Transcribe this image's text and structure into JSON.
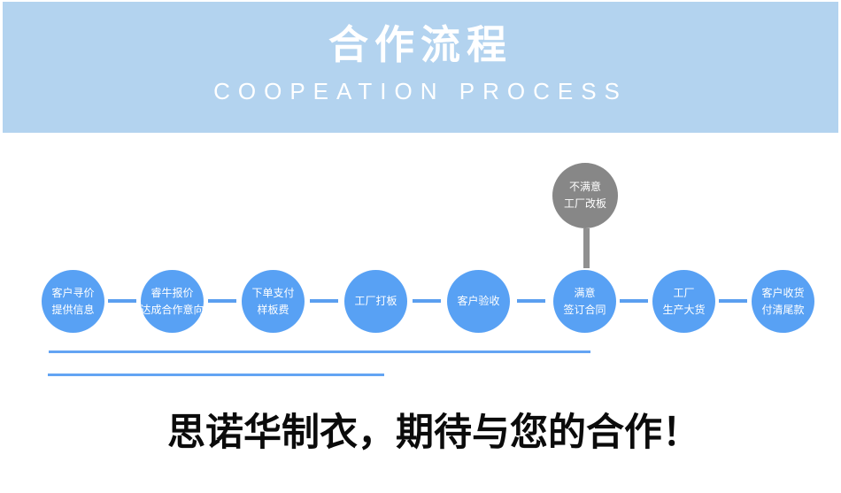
{
  "header": {
    "title": "合作流程",
    "subtitle": "COOPEATION PROCESS"
  },
  "theme": {
    "banner_bg": "#b3d3ef",
    "title_color": "#ffffff",
    "subtitle_color": "#ffffff",
    "node_blue": "#58a1f4",
    "node_gray": "#878787",
    "line_blue": "#5b9ff0",
    "divider_blue": "#63a4f3",
    "gray_line": "#909090",
    "slogan_color": "#0b0b0b"
  },
  "flow": {
    "alt_node": {
      "line1": "不满意",
      "line2": "工厂改板"
    },
    "steps": [
      {
        "line1": "客户寻价",
        "line2": "提供信息"
      },
      {
        "line1": "睿牛报价",
        "line2": "达成合作意向"
      },
      {
        "line1": "下单支付",
        "line2": "样板费"
      },
      {
        "line1": "工厂打板",
        "line2": ""
      },
      {
        "line1": "客户验收",
        "line2": ""
      },
      {
        "line1": "满意",
        "line2": "签订合同"
      },
      {
        "line1": "工厂",
        "line2": "生产大货"
      },
      {
        "line1": "客户收货",
        "line2": "付清尾款"
      }
    ]
  },
  "footer": {
    "slogan": "思诺华制衣，期待与您的合作！"
  }
}
